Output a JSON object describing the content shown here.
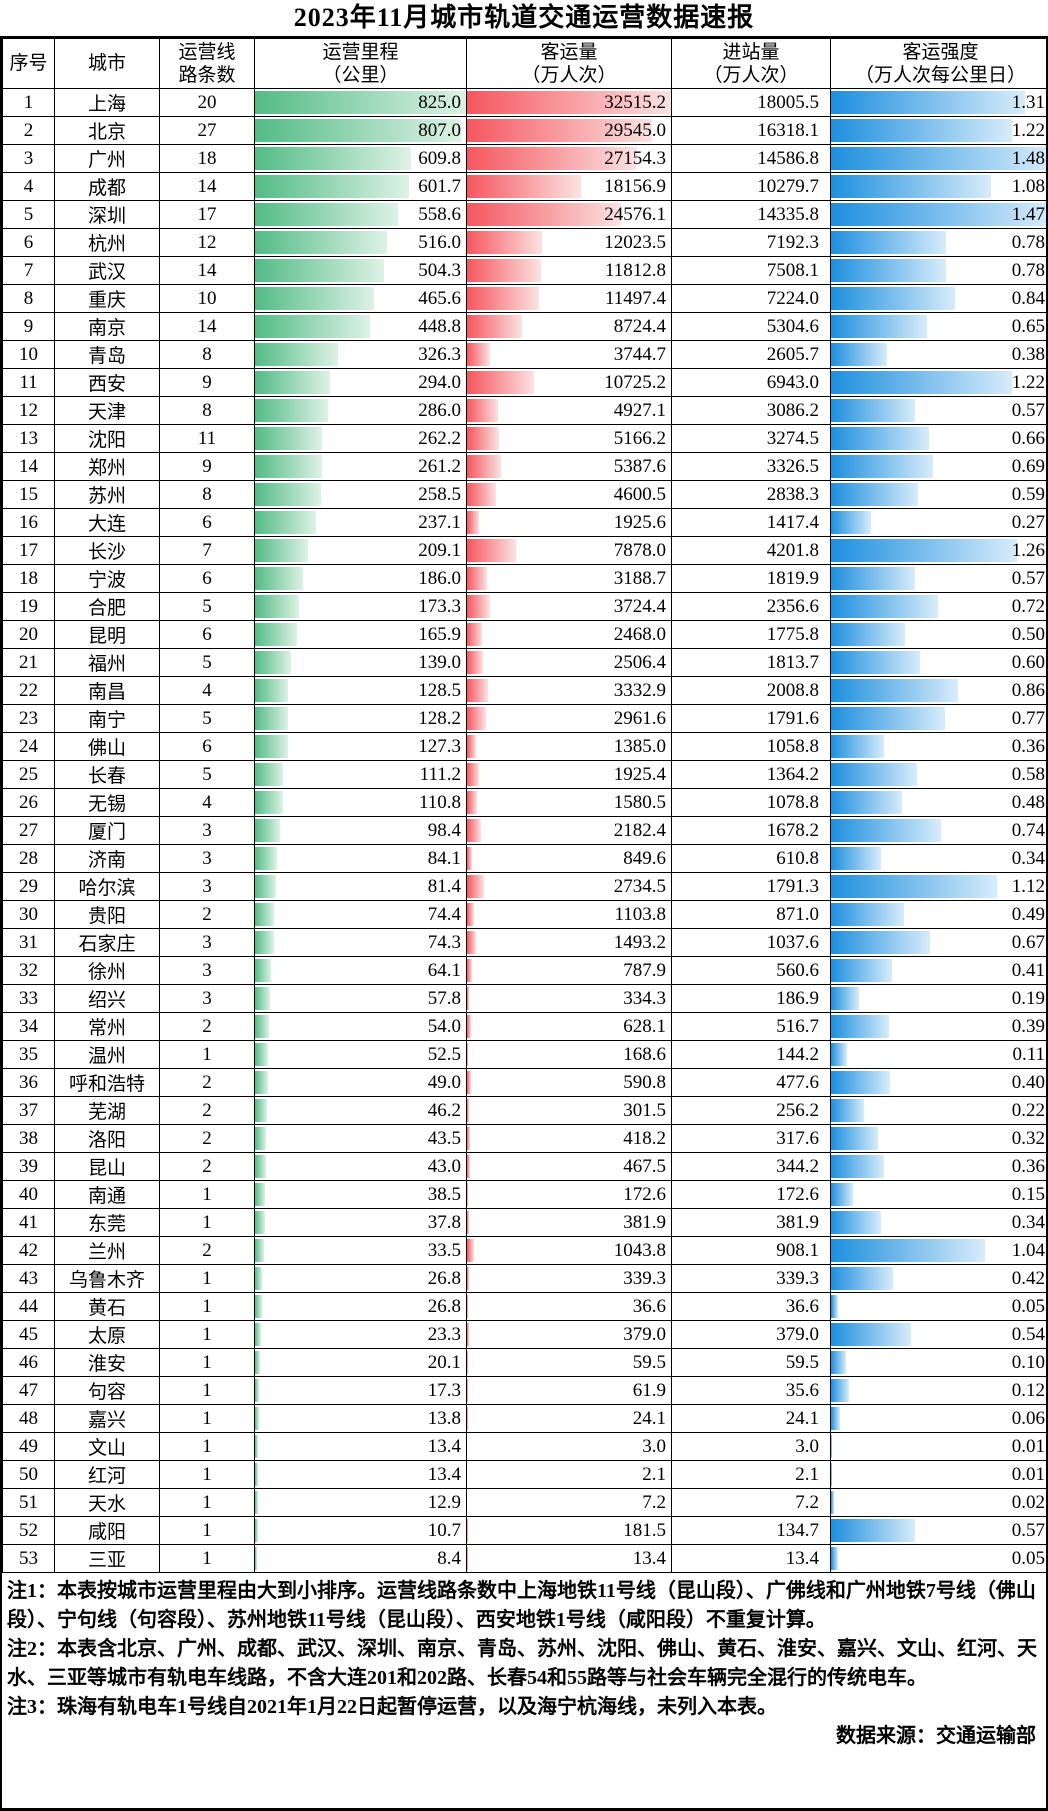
{
  "title": "2023年11月城市轨道交通运营数据速报",
  "table": {
    "headers": [
      {
        "line1": "序号",
        "line2": ""
      },
      {
        "line1": "城市",
        "line2": ""
      },
      {
        "line1": "运营线",
        "line2": "路条数"
      },
      {
        "line1": "运营里程",
        "line2": "（公里）"
      },
      {
        "line1": "客运量",
        "line2": "（万人次）"
      },
      {
        "line1": "进站量",
        "line2": "（万人次）"
      },
      {
        "line1": "客运强度",
        "line2": "（万人次每公里日）"
      }
    ]
  },
  "chart_data": {
    "type": "table",
    "title": "2023年11月城市轨道交通运营数据速报",
    "columns": [
      "序号",
      "城市",
      "运营线路条数",
      "运营里程（公里）",
      "客运量（万人次）",
      "进站量（万人次）",
      "客运强度（万人次每公里日）"
    ],
    "bar_columns": [
      "运营里程（公里）",
      "客运量（万人次）",
      "客运强度（万人次每公里日）"
    ],
    "bar_max": {
      "mileage": 825.0,
      "passengers": 32515.2,
      "intensity": 1.48
    },
    "rows": [
      [
        1,
        "上海",
        20,
        825.0,
        32515.2,
        18005.5,
        1.31
      ],
      [
        2,
        "北京",
        27,
        807.0,
        29545.0,
        16318.1,
        1.22
      ],
      [
        3,
        "广州",
        18,
        609.8,
        27154.3,
        14586.8,
        1.48
      ],
      [
        4,
        "成都",
        14,
        601.7,
        18156.9,
        10279.7,
        1.08
      ],
      [
        5,
        "深圳",
        17,
        558.6,
        24576.1,
        14335.8,
        1.47
      ],
      [
        6,
        "杭州",
        12,
        516.0,
        12023.5,
        7192.3,
        0.78
      ],
      [
        7,
        "武汉",
        14,
        504.3,
        11812.8,
        7508.1,
        0.78
      ],
      [
        8,
        "重庆",
        10,
        465.6,
        11497.4,
        7224.0,
        0.84
      ],
      [
        9,
        "南京",
        14,
        448.8,
        8724.4,
        5304.6,
        0.65
      ],
      [
        10,
        "青岛",
        8,
        326.3,
        3744.7,
        2605.7,
        0.38
      ],
      [
        11,
        "西安",
        9,
        294.0,
        10725.2,
        6943.0,
        1.22
      ],
      [
        12,
        "天津",
        8,
        286.0,
        4927.1,
        3086.2,
        0.57
      ],
      [
        13,
        "沈阳",
        11,
        262.2,
        5166.2,
        3274.5,
        0.66
      ],
      [
        14,
        "郑州",
        9,
        261.2,
        5387.6,
        3326.5,
        0.69
      ],
      [
        15,
        "苏州",
        8,
        258.5,
        4600.5,
        2838.3,
        0.59
      ],
      [
        16,
        "大连",
        6,
        237.1,
        1925.6,
        1417.4,
        0.27
      ],
      [
        17,
        "长沙",
        7,
        209.1,
        7878.0,
        4201.8,
        1.26
      ],
      [
        18,
        "宁波",
        6,
        186.0,
        3188.7,
        1819.9,
        0.57
      ],
      [
        19,
        "合肥",
        5,
        173.3,
        3724.4,
        2356.6,
        0.72
      ],
      [
        20,
        "昆明",
        6,
        165.9,
        2468.0,
        1775.8,
        0.5
      ],
      [
        21,
        "福州",
        5,
        139.0,
        2506.4,
        1813.7,
        0.6
      ],
      [
        22,
        "南昌",
        4,
        128.5,
        3332.9,
        2008.8,
        0.86
      ],
      [
        23,
        "南宁",
        5,
        128.2,
        2961.6,
        1791.6,
        0.77
      ],
      [
        24,
        "佛山",
        6,
        127.3,
        1385.0,
        1058.8,
        0.36
      ],
      [
        25,
        "长春",
        5,
        111.2,
        1925.4,
        1364.2,
        0.58
      ],
      [
        26,
        "无锡",
        4,
        110.8,
        1580.5,
        1078.8,
        0.48
      ],
      [
        27,
        "厦门",
        3,
        98.4,
        2182.4,
        1678.2,
        0.74
      ],
      [
        28,
        "济南",
        3,
        84.1,
        849.6,
        610.8,
        0.34
      ],
      [
        29,
        "哈尔滨",
        3,
        81.4,
        2734.5,
        1791.3,
        1.12
      ],
      [
        30,
        "贵阳",
        2,
        74.4,
        1103.8,
        871.0,
        0.49
      ],
      [
        31,
        "石家庄",
        3,
        74.3,
        1493.2,
        1037.6,
        0.67
      ],
      [
        32,
        "徐州",
        3,
        64.1,
        787.9,
        560.6,
        0.41
      ],
      [
        33,
        "绍兴",
        3,
        57.8,
        334.3,
        186.9,
        0.19
      ],
      [
        34,
        "常州",
        2,
        54.0,
        628.1,
        516.7,
        0.39
      ],
      [
        35,
        "温州",
        1,
        52.5,
        168.6,
        144.2,
        0.11
      ],
      [
        36,
        "呼和浩特",
        2,
        49.0,
        590.8,
        477.6,
        0.4
      ],
      [
        37,
        "芜湖",
        2,
        46.2,
        301.5,
        256.2,
        0.22
      ],
      [
        38,
        "洛阳",
        2,
        43.5,
        418.2,
        317.6,
        0.32
      ],
      [
        39,
        "昆山",
        2,
        43.0,
        467.5,
        344.2,
        0.36
      ],
      [
        40,
        "南通",
        1,
        38.5,
        172.6,
        172.6,
        0.15
      ],
      [
        41,
        "东莞",
        1,
        37.8,
        381.9,
        381.9,
        0.34
      ],
      [
        42,
        "兰州",
        2,
        33.5,
        1043.8,
        908.1,
        1.04
      ],
      [
        43,
        "乌鲁木齐",
        1,
        26.8,
        339.3,
        339.3,
        0.42
      ],
      [
        44,
        "黄石",
        1,
        26.8,
        36.6,
        36.6,
        0.05
      ],
      [
        45,
        "太原",
        1,
        23.3,
        379.0,
        379.0,
        0.54
      ],
      [
        46,
        "淮安",
        1,
        20.1,
        59.5,
        59.5,
        0.1
      ],
      [
        47,
        "句容",
        1,
        17.3,
        61.9,
        35.6,
        0.12
      ],
      [
        48,
        "嘉兴",
        1,
        13.8,
        24.1,
        24.1,
        0.06
      ],
      [
        49,
        "文山",
        1,
        13.4,
        3.0,
        3.0,
        0.01
      ],
      [
        50,
        "红河",
        1,
        13.4,
        2.1,
        2.1,
        0.01
      ],
      [
        51,
        "天水",
        1,
        12.9,
        7.2,
        7.2,
        0.02
      ],
      [
        52,
        "咸阳",
        1,
        10.7,
        181.5,
        134.7,
        0.57
      ],
      [
        53,
        "三亚",
        1,
        8.4,
        13.4,
        13.4,
        0.05
      ]
    ]
  },
  "notes": [
    "注1：本表按城市运营里程由大到小排序。运营线路条数中上海地铁11号线（昆山段）、广佛线和广州地铁7号线（佛山段）、宁句线（句容段）、苏州地铁11号线（昆山段）、西安地铁1号线（咸阳段）不重复计算。",
    "注2：本表含北京、广州、成都、武汉、深圳、南京、青岛、苏州、沈阳、佛山、黄石、淮安、嘉兴、文山、红河、天水、三亚等城市有轨电车线路，不含大连201和202路、长春54和55路等与社会车辆完全混行的传统电车。",
    "注3：珠海有轨电车1号线自2021年1月22日起暂停运营，以及海宁杭海线，未列入本表。"
  ],
  "source": "数据来源：交通运输部",
  "colors": {
    "green_start": "#53bb86",
    "green_end": "#ddf2e5",
    "red_start": "#f5565e",
    "red_end": "#fbe2e2",
    "blue_start": "#1d8fde",
    "blue_end": "#d7ecfb",
    "border": "#000000",
    "background": "#ffffff",
    "text": "#000000"
  }
}
